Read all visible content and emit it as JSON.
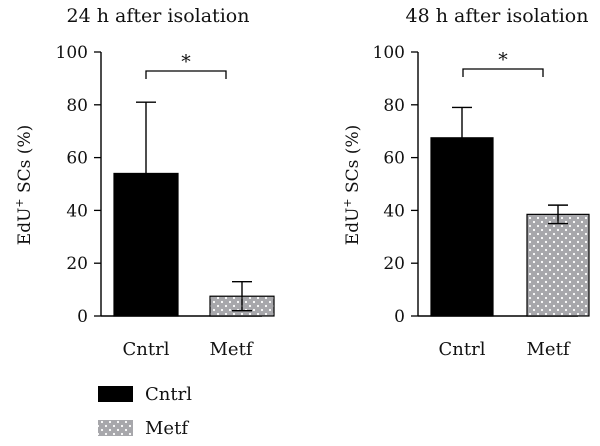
{
  "chart_data": [
    {
      "type": "bar",
      "title": "24 h after isolation",
      "xlabel": "",
      "ylabel": "EdU+ SCs (%)",
      "ylim": [
        0,
        100
      ],
      "yticks": [
        0,
        20,
        40,
        60,
        80,
        100
      ],
      "categories": [
        "Cntrl",
        "Metf"
      ],
      "values": [
        54,
        7.5
      ],
      "errors_upper": [
        27,
        5.5
      ],
      "errors_lower": [
        0,
        5.5
      ],
      "significance": "*"
    },
    {
      "type": "bar",
      "title": "48 h after isolation",
      "xlabel": "",
      "ylabel": "EdU+ SCs (%)",
      "ylim": [
        0,
        100
      ],
      "yticks": [
        0,
        20,
        40,
        60,
        80,
        100
      ],
      "categories": [
        "Cntrl",
        "Metf"
      ],
      "values": [
        67.5,
        38.5
      ],
      "errors_upper": [
        11.5,
        3.5
      ],
      "errors_lower": [
        0,
        3.5
      ],
      "significance": "*"
    }
  ],
  "legend": {
    "position": "bottom-left",
    "items": [
      {
        "label": "Cntrl",
        "pattern": "solid-black"
      },
      {
        "label": "Metf",
        "pattern": "gray-dotted"
      }
    ]
  },
  "colors": {
    "cntrl_fill": "#000000",
    "metf_fill": "#a7a7ab",
    "metf_dots": "#ffffff",
    "axis": "#000000"
  }
}
